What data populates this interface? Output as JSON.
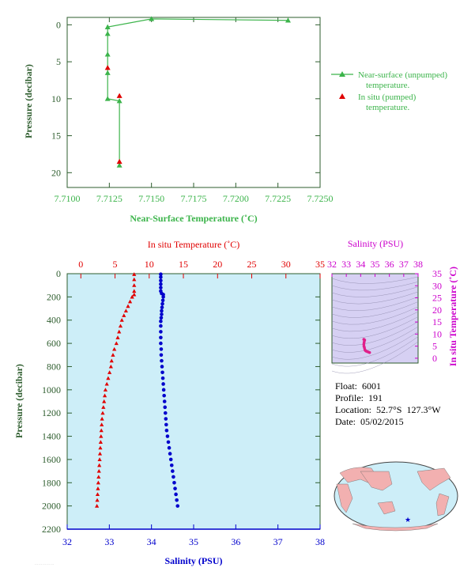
{
  "colors": {
    "green": "#3cb44b",
    "red": "#e00000",
    "blue": "#0000cc",
    "magenta": "#cc00cc",
    "axis_dark": "#2e5d2e",
    "panel_bg": "#cdeef8",
    "ts_bg": "#d6d0f3",
    "map_ocean": "#cdeef8",
    "map_land": "#f2b0b0"
  },
  "info": {
    "float_label": "Float:",
    "float_value": "6001",
    "profile_label": "Profile:",
    "profile_value": "191",
    "location_label": "Location:",
    "location_lat": "52.7°S",
    "location_lon": "127.3°W",
    "date_label": "Date:",
    "date_value": "05/02/2015"
  },
  "chart_data": [
    {
      "type": "line",
      "name": "near-surface",
      "xlabel": "Near-Surface Temperature (˚C)",
      "ylabel": "Pressure (decibar)",
      "xlim": [
        7.71,
        7.725
      ],
      "ylim": [
        22,
        -1
      ],
      "xticks": [
        "7.7100",
        "7.7125",
        "7.7150",
        "7.7175",
        "7.7200",
        "7.7225",
        "7.7250"
      ],
      "yticks": [
        "0",
        "5",
        "10",
        "15",
        "20"
      ],
      "grid": false,
      "legend_position": "right",
      "series": [
        {
          "name": "Near-surface (unpumped) temperature.",
          "marker": "triangle",
          "x": [
            7.7231,
            7.715,
            7.7124,
            7.7124,
            7.7124,
            7.7124,
            7.7124,
            7.7131,
            7.7131
          ],
          "y": [
            -0.6,
            -0.8,
            0.3,
            1.2,
            4,
            6.5,
            10,
            10.3,
            19
          ]
        },
        {
          "name": "In situ (pumped) temperature.",
          "marker": "triangle",
          "x": [
            7.7124,
            7.7131,
            7.7131
          ],
          "y": [
            5.8,
            9.6,
            18.5
          ]
        }
      ]
    },
    {
      "type": "line",
      "name": "profile",
      "ylabel": "Pressure (decibar)",
      "ylim": [
        2200,
        0
      ],
      "yticks": [
        "0",
        "200",
        "400",
        "600",
        "800",
        "1000",
        "1200",
        "1400",
        "1600",
        "1800",
        "2000",
        "2200"
      ],
      "top_axis": {
        "label": "In situ Temperature (˚C)",
        "lim": [
          -2,
          35
        ],
        "ticks": [
          "0",
          "5",
          "10",
          "15",
          "20",
          "25",
          "30",
          "35"
        ]
      },
      "bottom_axis": {
        "label": "Salinity (PSU)",
        "lim": [
          32,
          38
        ],
        "ticks": [
          "32",
          "33",
          "34",
          "35",
          "36",
          "37",
          "38"
        ]
      },
      "series": [
        {
          "name": "In situ Temperature",
          "marker": "triangle",
          "values": [
            [
              7.8,
              5
            ],
            [
              7.8,
              50
            ],
            [
              7.8,
              100
            ],
            [
              7.8,
              150
            ],
            [
              7.8,
              180
            ],
            [
              7.5,
              200
            ],
            [
              7.2,
              240
            ],
            [
              6.9,
              280
            ],
            [
              6.6,
              320
            ],
            [
              6.3,
              360
            ],
            [
              6.0,
              400
            ],
            [
              5.8,
              450
            ],
            [
              5.6,
              500
            ],
            [
              5.4,
              550
            ],
            [
              5.2,
              600
            ],
            [
              4.9,
              650
            ],
            [
              4.7,
              700
            ],
            [
              4.5,
              750
            ],
            [
              4.4,
              800
            ],
            [
              4.2,
              850
            ],
            [
              4.0,
              900
            ],
            [
              3.8,
              950
            ],
            [
              3.6,
              1000
            ],
            [
              3.5,
              1050
            ],
            [
              3.4,
              1100
            ],
            [
              3.3,
              1150
            ],
            [
              3.2,
              1200
            ],
            [
              3.1,
              1250
            ],
            [
              3.05,
              1300
            ],
            [
              3.0,
              1350
            ],
            [
              2.95,
              1400
            ],
            [
              2.9,
              1450
            ],
            [
              2.85,
              1500
            ],
            [
              2.8,
              1550
            ],
            [
              2.75,
              1600
            ],
            [
              2.7,
              1650
            ],
            [
              2.65,
              1700
            ],
            [
              2.6,
              1750
            ],
            [
              2.55,
              1800
            ],
            [
              2.5,
              1850
            ],
            [
              2.45,
              1900
            ],
            [
              2.4,
              1950
            ],
            [
              2.35,
              2000
            ]
          ]
        },
        {
          "name": "Salinity",
          "marker": "circle",
          "values": [
            [
              34.22,
              5
            ],
            [
              34.22,
              30
            ],
            [
              34.22,
              60
            ],
            [
              34.22,
              90
            ],
            [
              34.22,
              120
            ],
            [
              34.22,
              150
            ],
            [
              34.24,
              170
            ],
            [
              34.28,
              180
            ],
            [
              34.28,
              200
            ],
            [
              34.27,
              230
            ],
            [
              34.26,
              260
            ],
            [
              34.25,
              290
            ],
            [
              34.24,
              320
            ],
            [
              34.24,
              350
            ],
            [
              34.23,
              380
            ],
            [
              34.22,
              410
            ],
            [
              34.22,
              450
            ],
            [
              34.22,
              500
            ],
            [
              34.22,
              550
            ],
            [
              34.22,
              600
            ],
            [
              34.23,
              650
            ],
            [
              34.23,
              700
            ],
            [
              34.24,
              750
            ],
            [
              34.25,
              800
            ],
            [
              34.26,
              850
            ],
            [
              34.27,
              900
            ],
            [
              34.28,
              950
            ],
            [
              34.29,
              1000
            ],
            [
              34.3,
              1050
            ],
            [
              34.31,
              1100
            ],
            [
              34.32,
              1150
            ],
            [
              34.33,
              1200
            ],
            [
              34.34,
              1250
            ],
            [
              34.35,
              1300
            ],
            [
              34.36,
              1350
            ],
            [
              34.38,
              1400
            ],
            [
              34.4,
              1450
            ],
            [
              34.42,
              1500
            ],
            [
              34.44,
              1550
            ],
            [
              34.46,
              1600
            ],
            [
              34.48,
              1650
            ],
            [
              34.5,
              1700
            ],
            [
              34.52,
              1750
            ],
            [
              34.54,
              1800
            ],
            [
              34.56,
              1850
            ],
            [
              34.58,
              1900
            ],
            [
              34.6,
              1950
            ],
            [
              34.62,
              2000
            ]
          ]
        }
      ]
    },
    {
      "type": "scatter",
      "name": "ts-diagram",
      "xlabel": "Salinity (PSU)",
      "ylabel": "In situ Temperature (˚C)",
      "xlim": [
        32,
        38
      ],
      "ylim": [
        -2,
        35
      ],
      "xticks": [
        "32",
        "33",
        "34",
        "35",
        "36",
        "37",
        "38"
      ],
      "yticks": [
        "0",
        "5",
        "10",
        "15",
        "20",
        "25",
        "30",
        "35"
      ],
      "series": [
        {
          "name": "T-S",
          "values": [
            [
              34.22,
              7.8
            ],
            [
              34.28,
              7.5
            ],
            [
              34.24,
              6.6
            ],
            [
              34.22,
              5.8
            ],
            [
              34.23,
              5.0
            ],
            [
              34.26,
              4.4
            ],
            [
              34.29,
              3.6
            ],
            [
              34.33,
              3.2
            ],
            [
              34.38,
              2.95
            ],
            [
              34.46,
              2.75
            ],
            [
              34.54,
              2.55
            ],
            [
              34.62,
              2.35
            ]
          ]
        }
      ]
    }
  ]
}
